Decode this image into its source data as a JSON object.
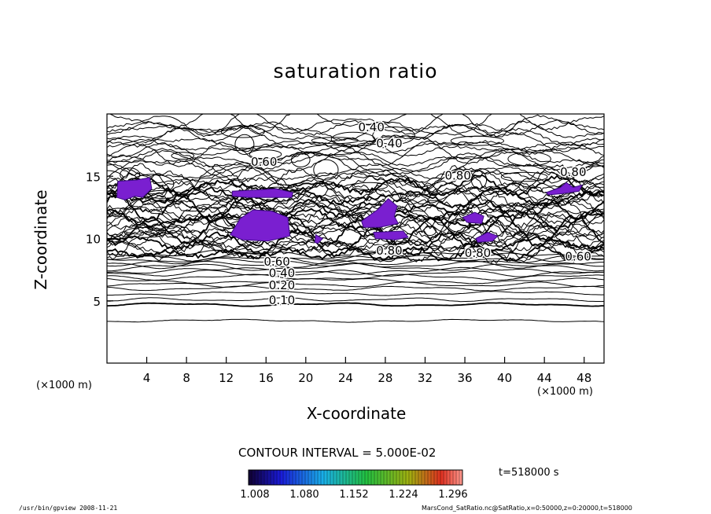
{
  "chart_data": {
    "type": "contour",
    "title": "saturation ratio",
    "xlabel": "X-coordinate",
    "ylabel": "Z-coordinate",
    "x_unit_label": "(×1000 m)",
    "xlim": [
      0,
      50
    ],
    "ylim": [
      0,
      20
    ],
    "xticks": [
      4,
      8,
      12,
      16,
      20,
      24,
      28,
      32,
      36,
      40,
      44,
      48
    ],
    "yticks": [
      5,
      10,
      15
    ],
    "contour_interval_text": "CONTOUR INTERVAL = 5.000E-02",
    "contour_labels": [
      {
        "text": "0.10",
        "x": 17.6,
        "z": 5.1
      },
      {
        "text": "0.20",
        "x": 17.6,
        "z": 6.3
      },
      {
        "text": "0.40",
        "x": 17.6,
        "z": 7.3
      },
      {
        "text": "0.60",
        "x": 17.1,
        "z": 8.2
      },
      {
        "text": "0.40",
        "x": 26.6,
        "z": 19.0
      },
      {
        "text": "0.40",
        "x": 28.4,
        "z": 17.7
      },
      {
        "text": "0.60",
        "x": 15.8,
        "z": 16.2
      },
      {
        "text": "0.80",
        "x": 35.3,
        "z": 15.1
      },
      {
        "text": "0.80",
        "x": 46.9,
        "z": 15.4
      },
      {
        "text": "0.80",
        "x": 28.4,
        "z": 9.1
      },
      {
        "text": "0.80",
        "x": 37.3,
        "z": 8.9
      },
      {
        "text": "0.60",
        "x": 47.4,
        "z": 8.6
      }
    ],
    "shaded_regions": [
      {
        "level": 1.02,
        "points": [
          [
            1.1,
            14.6
          ],
          [
            3.0,
            14.7
          ],
          [
            4.3,
            14.9
          ],
          [
            4.5,
            14.0
          ],
          [
            3.6,
            13.3
          ],
          [
            2.8,
            13.4
          ],
          [
            1.8,
            13.1
          ],
          [
            1.0,
            13.3
          ]
        ]
      },
      {
        "level": 1.05,
        "points": [
          [
            12.4,
            10.3
          ],
          [
            13.4,
            11.6
          ],
          [
            14.7,
            12.3
          ],
          [
            16.6,
            12.2
          ],
          [
            18.2,
            11.7
          ],
          [
            18.4,
            10.2
          ],
          [
            16.2,
            9.8
          ],
          [
            13.6,
            9.9
          ]
        ]
      },
      {
        "level": 1.02,
        "points": [
          [
            12.6,
            13.8
          ],
          [
            15.0,
            13.9
          ],
          [
            17.0,
            14.0
          ],
          [
            18.7,
            13.7
          ],
          [
            18.6,
            13.3
          ],
          [
            14.2,
            13.3
          ],
          [
            12.6,
            13.4
          ]
        ]
      },
      {
        "level": 1.03,
        "points": [
          [
            25.6,
            11.4
          ],
          [
            27.2,
            12.3
          ],
          [
            28.3,
            13.2
          ],
          [
            29.2,
            12.6
          ],
          [
            28.9,
            11.8
          ],
          [
            29.3,
            11.2
          ],
          [
            27.4,
            10.9
          ],
          [
            25.8,
            10.9
          ]
        ]
      },
      {
        "level": 1.02,
        "points": [
          [
            26.8,
            10.5
          ],
          [
            29.8,
            10.6
          ],
          [
            30.3,
            10.1
          ],
          [
            29.0,
            9.9
          ],
          [
            27.0,
            10.0
          ]
        ]
      },
      {
        "level": 1.02,
        "points": [
          [
            35.8,
            11.7
          ],
          [
            37.0,
            12.1
          ],
          [
            37.9,
            11.8
          ],
          [
            37.7,
            11.2
          ],
          [
            36.2,
            11.3
          ]
        ]
      },
      {
        "level": 1.02,
        "points": [
          [
            37.1,
            10.0
          ],
          [
            38.3,
            10.5
          ],
          [
            39.3,
            10.2
          ],
          [
            38.8,
            9.8
          ],
          [
            37.3,
            9.7
          ]
        ]
      },
      {
        "level": 1.02,
        "points": [
          [
            21.0,
            10.3
          ],
          [
            21.7,
            10.0
          ],
          [
            21.2,
            9.6
          ],
          [
            20.9,
            9.7
          ]
        ]
      },
      {
        "level": 1.02,
        "points": [
          [
            44.2,
            13.7
          ],
          [
            45.6,
            14.1
          ],
          [
            46.2,
            14.5
          ],
          [
            46.9,
            14.1
          ],
          [
            47.8,
            14.3
          ],
          [
            47.5,
            13.8
          ],
          [
            45.8,
            13.6
          ],
          [
            44.4,
            13.5
          ]
        ]
      }
    ],
    "colorbar": {
      "ticks": [
        "1.008",
        "1.080",
        "1.152",
        "1.224",
        "1.296"
      ],
      "range": [
        0.99,
        1.32
      ]
    },
    "time_label": "t=518000 s",
    "footer_left": "/usr/bin/gpview  2008-11-21",
    "footer_right": "MarsCond_SatRatio.nc@SatRatio,x=0:50000,z=0:20000,t=518000"
  }
}
